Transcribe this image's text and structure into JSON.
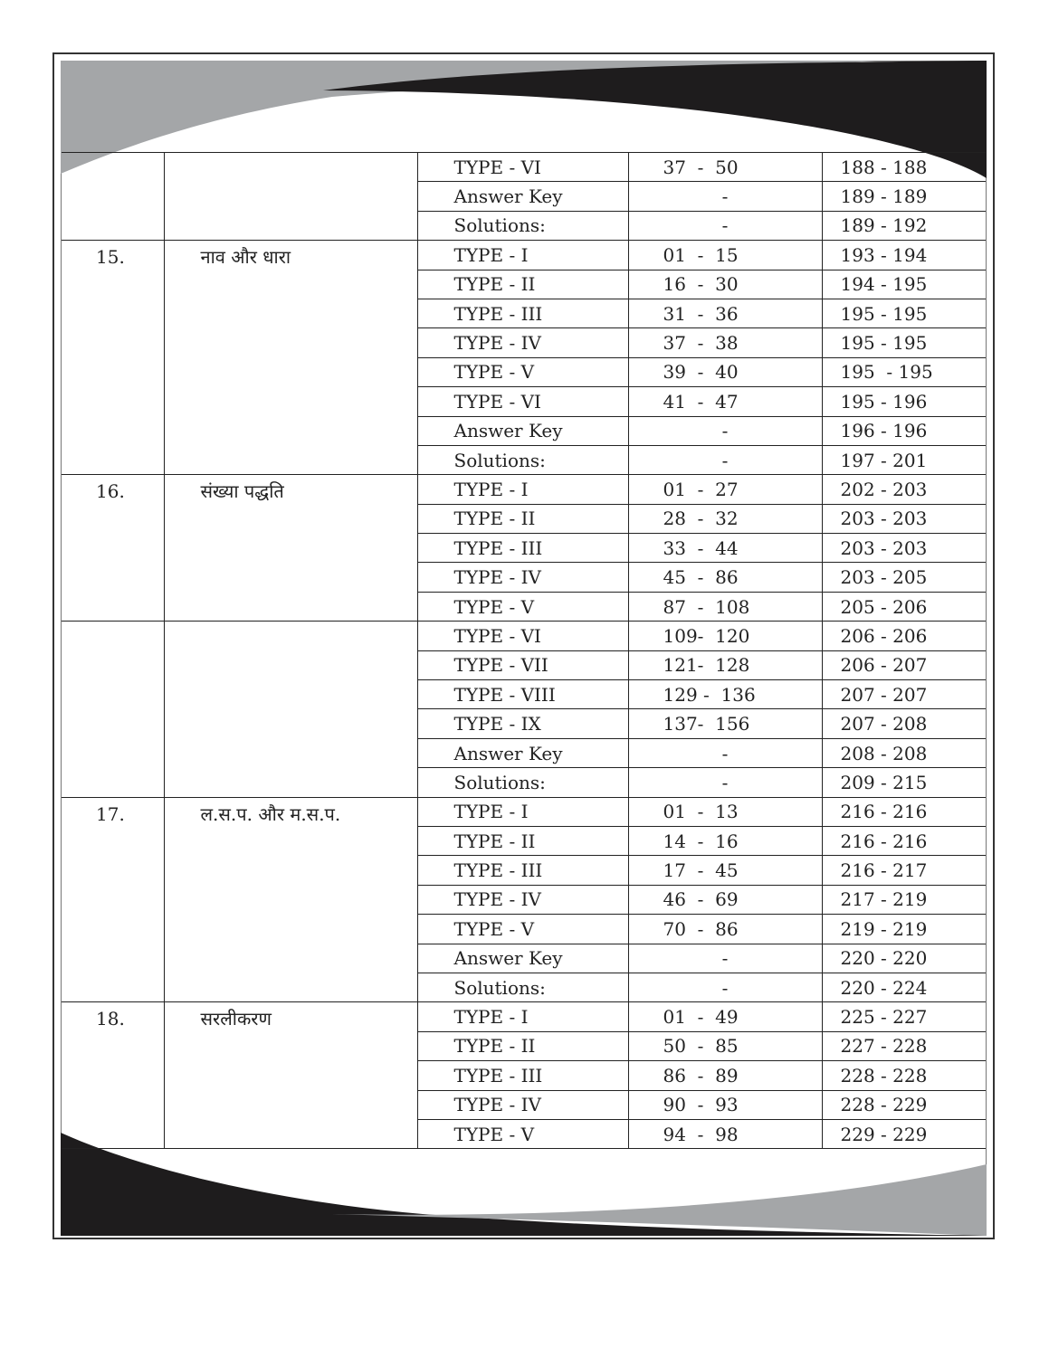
{
  "groups": [
    {
      "number": "",
      "topic": "",
      "rows": [
        {
          "type": "TYPE - VI",
          "range": "37  -  50",
          "pages": "188 - 188"
        },
        {
          "type": "Answer Key",
          "range": "-",
          "pages": "189 - 189"
        },
        {
          "type": "Solutions:",
          "range": "-",
          "pages": "189 - 192"
        }
      ]
    },
    {
      "number": "15.",
      "topic": "नाव और धारा",
      "rows": [
        {
          "type": "TYPE - I",
          "range": "01  -  15",
          "pages": "193 - 194"
        },
        {
          "type": "TYPE - II",
          "range": "16  -  30",
          "pages": "194 - 195"
        },
        {
          "type": "TYPE - III",
          "range": "31  -  36",
          "pages": "195 - 195"
        },
        {
          "type": "TYPE - IV",
          "range": "37  -  38",
          "pages": "195 - 195"
        },
        {
          "type": "TYPE - V",
          "range": "39  -  40",
          "pages": "195  - 195"
        },
        {
          "type": "TYPE - VI",
          "range": "41  -  47",
          "pages": "195 - 196"
        },
        {
          "type": "Answer Key",
          "range": "-",
          "pages": "196 - 196"
        },
        {
          "type": "Solutions:",
          "range": "-",
          "pages": "197 - 201"
        }
      ]
    },
    {
      "number": "16.",
      "topic": "संख्या पद्धति",
      "rows": [
        {
          "type": "TYPE - I",
          "range": "01  -  27",
          "pages": "202 - 203"
        },
        {
          "type": "TYPE - II",
          "range": "28  -  32",
          "pages": "203 - 203"
        },
        {
          "type": "TYPE - III",
          "range": "33  -  44",
          "pages": "203 - 203"
        },
        {
          "type": "TYPE - IV",
          "range": "45  -  86",
          "pages": "203 - 205"
        },
        {
          "type": "TYPE - V",
          "range": "87  -  108",
          "pages": "205 - 206"
        }
      ]
    },
    {
      "number": "",
      "topic": "",
      "rows": [
        {
          "type": "TYPE - VI",
          "range": "109-  120",
          "pages": "206 - 206"
        },
        {
          "type": "TYPE - VII",
          "range": "121-  128",
          "pages": "206 - 207"
        },
        {
          "type": "TYPE - VIII",
          "range": "129 -  136",
          "pages": "207 - 207"
        },
        {
          "type": "TYPE - IX",
          "range": "137-  156",
          "pages": "207 - 208"
        },
        {
          "type": "Answer Key",
          "range": "-",
          "pages": "208 - 208"
        },
        {
          "type": "Solutions:",
          "range": "-",
          "pages": "209 - 215"
        }
      ]
    },
    {
      "number": "17.",
      "topic": "ल.स.प. और म.स.प.",
      "rows": [
        {
          "type": "TYPE - I",
          "range": "01  -  13",
          "pages": "216 - 216"
        },
        {
          "type": "TYPE - II",
          "range": "14  -  16",
          "pages": "216 - 216"
        },
        {
          "type": "TYPE - III",
          "range": "17  -  45",
          "pages": "216 - 217"
        },
        {
          "type": "TYPE - IV",
          "range": "46  -  69",
          "pages": "217 - 219"
        },
        {
          "type": "TYPE - V",
          "range": "70  -  86",
          "pages": "219 - 219"
        },
        {
          "type": "Answer Key",
          "range": "-",
          "pages": "220 - 220"
        },
        {
          "type": "Solutions:",
          "range": "-",
          "pages": "220 - 224"
        }
      ]
    },
    {
      "number": "18.",
      "topic": "सरलीकरण",
      "rows": [
        {
          "type": "TYPE - I",
          "range": "01  -  49",
          "pages": "225 - 227"
        },
        {
          "type": "TYPE - II",
          "range": "50  -  85",
          "pages": "227 - 228"
        },
        {
          "type": "TYPE - III",
          "range": "86  -  89",
          "pages": "228 - 228"
        },
        {
          "type": "TYPE - IV",
          "range": "90  -  93",
          "pages": "228 - 229"
        },
        {
          "type": "TYPE - V",
          "range": "94  -  98",
          "pages": "229 - 229"
        }
      ]
    }
  ],
  "colors": {
    "gray": "#a4a6a8",
    "black": "#1e1c1d"
  }
}
